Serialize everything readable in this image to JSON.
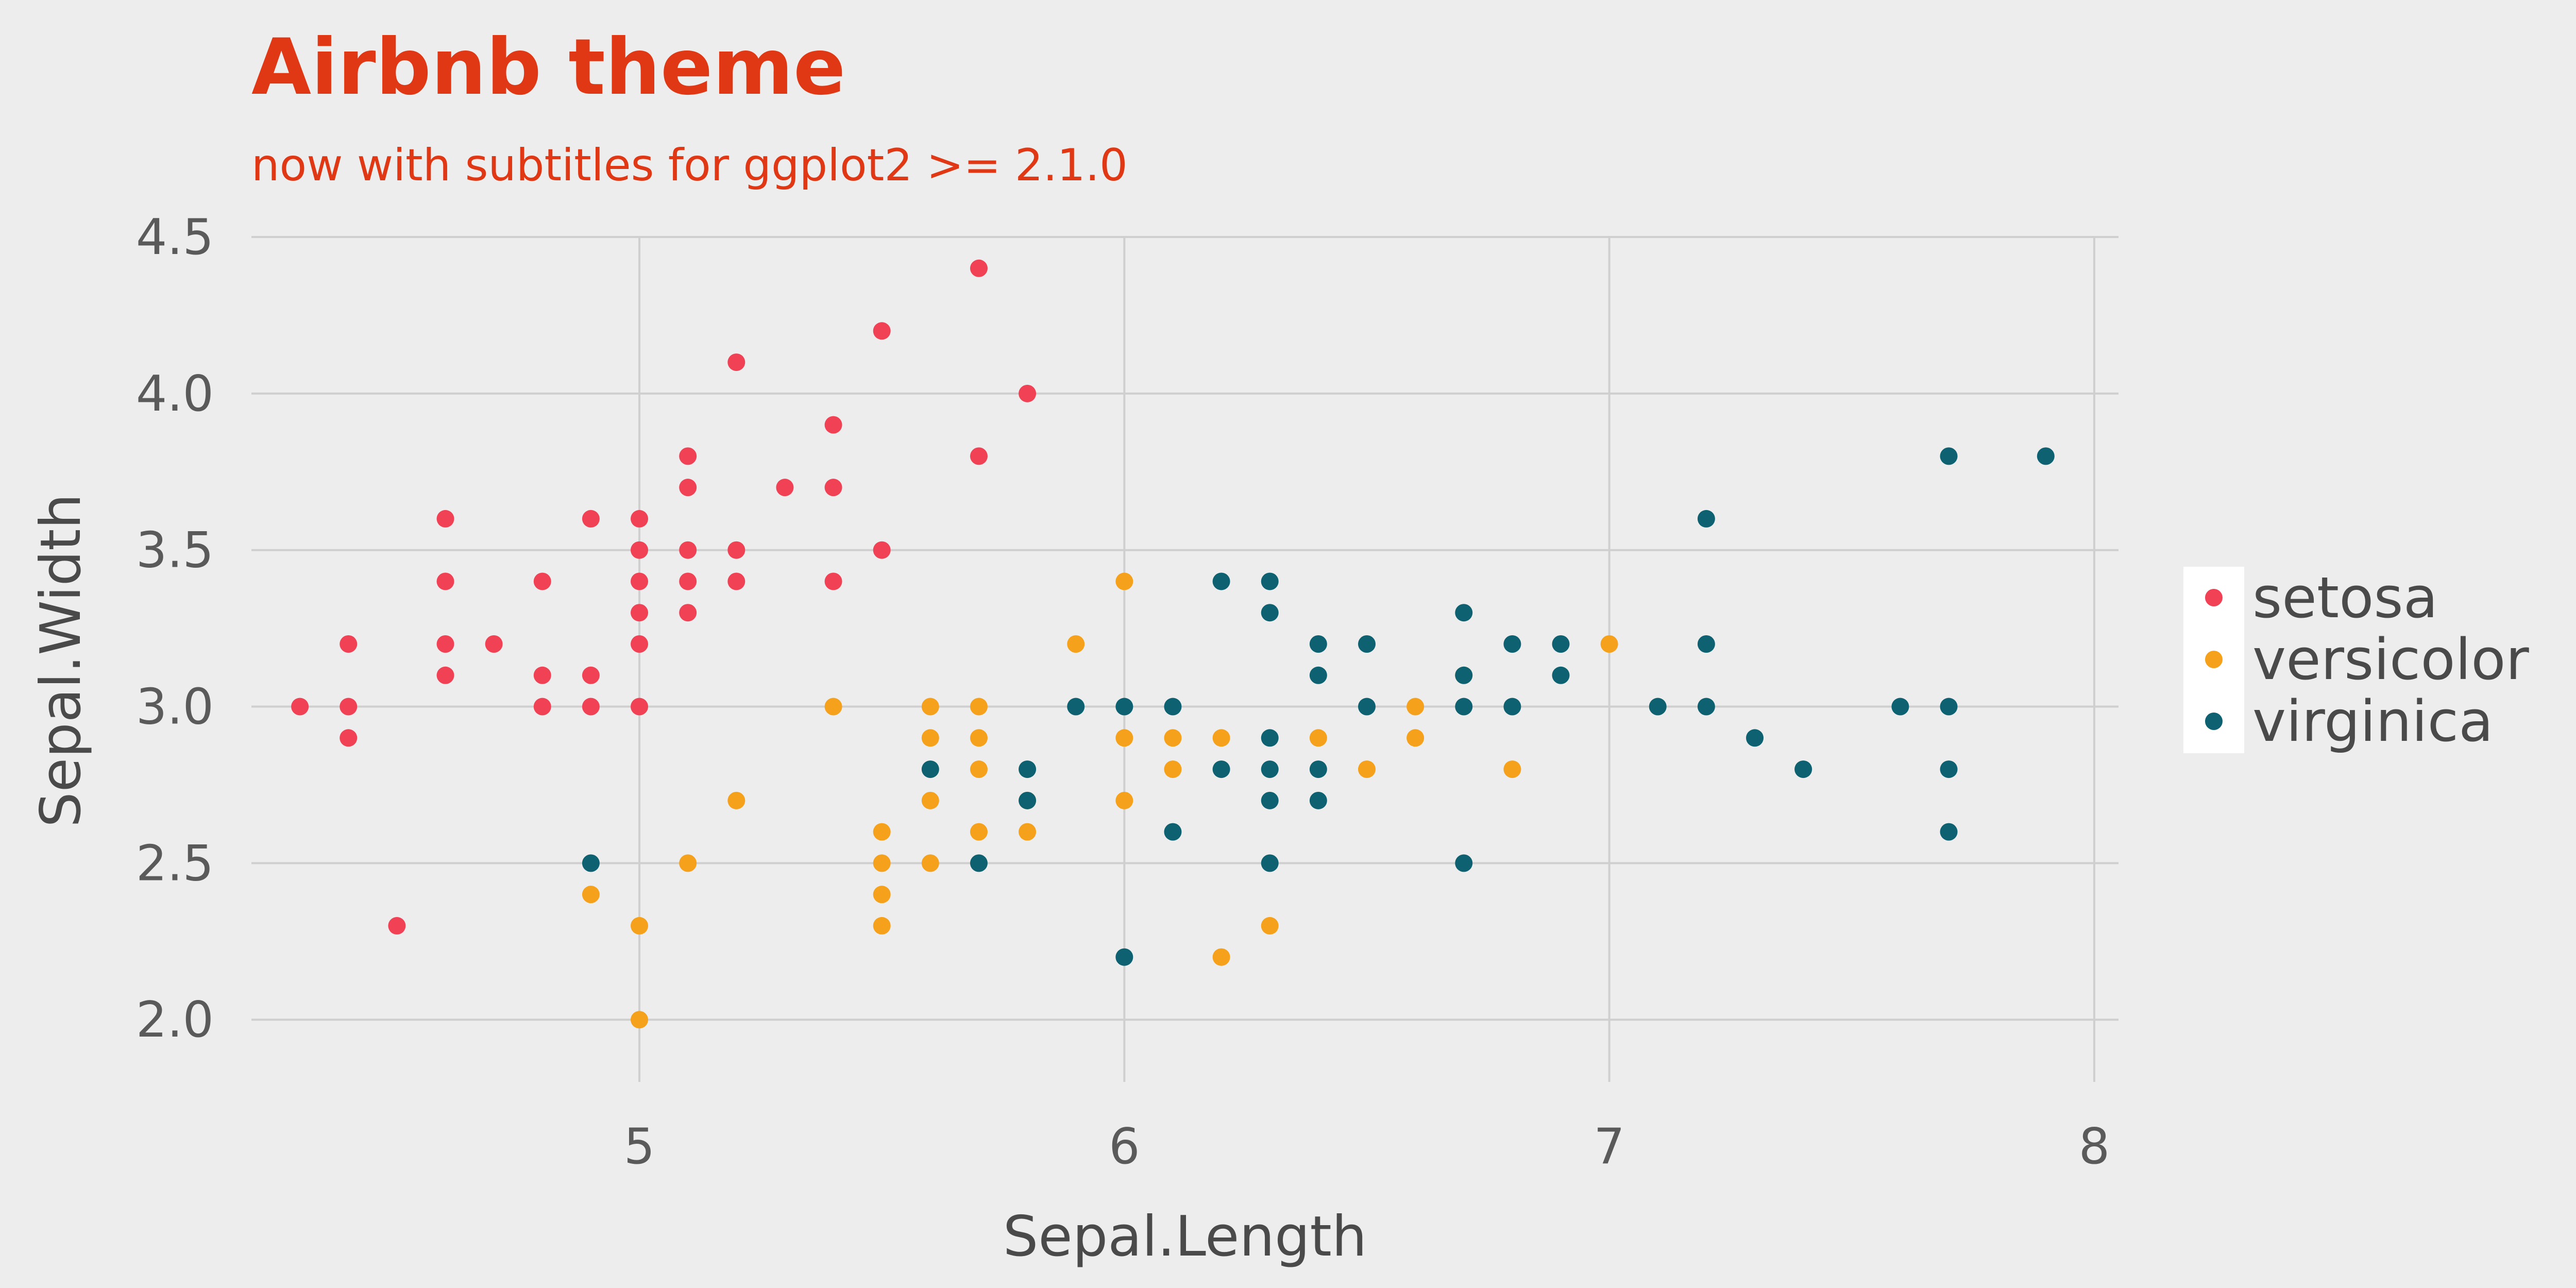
{
  "title": "Airbnb theme",
  "subtitle": "now with subtitles for ggplot2 >= 2.1.0",
  "colors": {
    "background": "#ededed",
    "title": "#e03714",
    "text": "#4a4a4a",
    "tick": "#5a5a5a",
    "grid": "#cfcfcf",
    "setosa": "#f04155",
    "versicolor": "#f5a11b",
    "virginica": "#0d6170"
  },
  "chart_data": {
    "type": "scatter",
    "xlabel": "Sepal.Length",
    "ylabel": "Sepal.Width",
    "xlim": [
      4.2,
      8.05
    ],
    "ylim": [
      1.9,
      4.5
    ],
    "x_ticks": [
      5,
      6,
      7,
      8
    ],
    "x_tick_labels": [
      "5",
      "6",
      "7",
      "8"
    ],
    "y_ticks": [
      2.0,
      2.5,
      3.0,
      3.5,
      4.0,
      4.5
    ],
    "y_tick_labels": [
      "2.0",
      "2.5",
      "3.0",
      "3.5",
      "4.0",
      "4.5"
    ],
    "grid": true,
    "legend_position": "right",
    "series": [
      {
        "name": "setosa",
        "points": [
          [
            4.3,
            3.0
          ],
          [
            4.4,
            3.2
          ],
          [
            4.4,
            3.0
          ],
          [
            4.4,
            2.9
          ],
          [
            4.5,
            2.3
          ],
          [
            4.6,
            3.6
          ],
          [
            4.6,
            3.4
          ],
          [
            4.6,
            3.2
          ],
          [
            4.6,
            3.1
          ],
          [
            4.7,
            3.2
          ],
          [
            4.8,
            3.4
          ],
          [
            4.8,
            3.1
          ],
          [
            4.8,
            3.0
          ],
          [
            4.9,
            3.6
          ],
          [
            4.9,
            3.1
          ],
          [
            4.9,
            3.0
          ],
          [
            5.0,
            3.6
          ],
          [
            5.0,
            3.5
          ],
          [
            5.0,
            3.4
          ],
          [
            5.0,
            3.3
          ],
          [
            5.0,
            3.2
          ],
          [
            5.0,
            3.0
          ],
          [
            5.1,
            3.8
          ],
          [
            5.1,
            3.7
          ],
          [
            5.1,
            3.5
          ],
          [
            5.1,
            3.4
          ],
          [
            5.1,
            3.3
          ],
          [
            5.2,
            4.1
          ],
          [
            5.2,
            3.5
          ],
          [
            5.2,
            3.4
          ],
          [
            5.3,
            3.7
          ],
          [
            5.4,
            3.9
          ],
          [
            5.4,
            3.7
          ],
          [
            5.4,
            3.4
          ],
          [
            5.5,
            4.2
          ],
          [
            5.5,
            3.5
          ],
          [
            5.7,
            4.4
          ],
          [
            5.7,
            3.8
          ],
          [
            5.8,
            4.0
          ]
        ]
      },
      {
        "name": "versicolor",
        "points": [
          [
            4.9,
            2.4
          ],
          [
            5.0,
            2.3
          ],
          [
            5.0,
            2.0
          ],
          [
            5.1,
            2.5
          ],
          [
            5.2,
            2.7
          ],
          [
            5.4,
            3.0
          ],
          [
            5.5,
            2.6
          ],
          [
            5.5,
            2.5
          ],
          [
            5.5,
            2.4
          ],
          [
            5.5,
            2.3
          ],
          [
            5.6,
            3.0
          ],
          [
            5.6,
            2.9
          ],
          [
            5.6,
            2.7
          ],
          [
            5.6,
            2.5
          ],
          [
            5.7,
            3.0
          ],
          [
            5.7,
            2.9
          ],
          [
            5.7,
            2.8
          ],
          [
            5.7,
            2.6
          ],
          [
            5.8,
            2.7
          ],
          [
            5.8,
            2.6
          ],
          [
            5.9,
            3.2
          ],
          [
            6.0,
            3.4
          ],
          [
            6.0,
            2.9
          ],
          [
            6.0,
            2.7
          ],
          [
            6.1,
            2.9
          ],
          [
            6.1,
            2.8
          ],
          [
            6.2,
            2.9
          ],
          [
            6.2,
            2.2
          ],
          [
            6.3,
            2.3
          ],
          [
            6.4,
            2.9
          ],
          [
            6.5,
            2.8
          ],
          [
            6.6,
            3.0
          ],
          [
            6.6,
            2.9
          ],
          [
            6.7,
            3.1
          ],
          [
            6.8,
            2.8
          ],
          [
            7.0,
            3.2
          ]
        ]
      },
      {
        "name": "virginica",
        "points": [
          [
            4.9,
            2.5
          ],
          [
            5.6,
            2.8
          ],
          [
            5.7,
            2.5
          ],
          [
            5.8,
            2.8
          ],
          [
            5.8,
            2.7
          ],
          [
            5.9,
            3.0
          ],
          [
            6.0,
            3.0
          ],
          [
            6.0,
            2.2
          ],
          [
            6.1,
            3.0
          ],
          [
            6.1,
            2.6
          ],
          [
            6.2,
            3.4
          ],
          [
            6.2,
            2.8
          ],
          [
            6.3,
            3.4
          ],
          [
            6.3,
            3.3
          ],
          [
            6.3,
            2.9
          ],
          [
            6.3,
            2.8
          ],
          [
            6.3,
            2.7
          ],
          [
            6.3,
            2.5
          ],
          [
            6.4,
            3.2
          ],
          [
            6.4,
            3.1
          ],
          [
            6.4,
            2.8
          ],
          [
            6.4,
            2.7
          ],
          [
            6.5,
            3.2
          ],
          [
            6.5,
            3.0
          ],
          [
            6.7,
            3.3
          ],
          [
            6.7,
            3.1
          ],
          [
            6.7,
            3.0
          ],
          [
            6.7,
            2.5
          ],
          [
            6.8,
            3.2
          ],
          [
            6.8,
            3.0
          ],
          [
            6.9,
            3.2
          ],
          [
            6.9,
            3.1
          ],
          [
            7.1,
            3.0
          ],
          [
            7.2,
            3.6
          ],
          [
            7.2,
            3.2
          ],
          [
            7.2,
            3.0
          ],
          [
            7.3,
            2.9
          ],
          [
            7.4,
            2.8
          ],
          [
            7.6,
            3.0
          ],
          [
            7.7,
            3.8
          ],
          [
            7.7,
            3.0
          ],
          [
            7.7,
            2.8
          ],
          [
            7.7,
            2.6
          ],
          [
            7.9,
            3.8
          ]
        ]
      }
    ]
  }
}
